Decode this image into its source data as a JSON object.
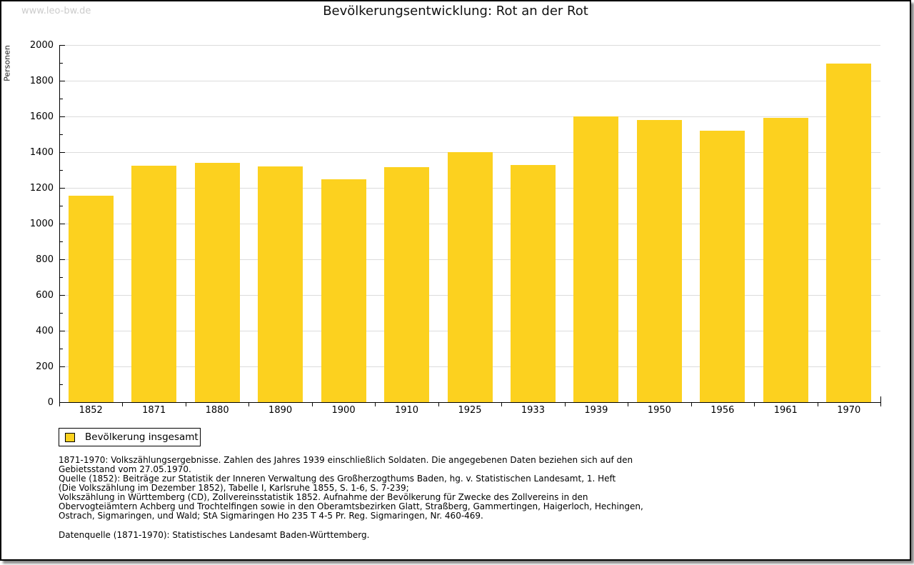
{
  "watermark": "www.leo-bw.de",
  "title": "Bevölkerungsentwicklung: Rot an der Rot",
  "chart_data": {
    "type": "bar",
    "title": "Bevölkerungsentwicklung: Rot an der Rot",
    "xlabel": "",
    "ylabel": "Personen",
    "categories": [
      "1852",
      "1871",
      "1880",
      "1890",
      "1900",
      "1910",
      "1925",
      "1933",
      "1939",
      "1950",
      "1956",
      "1961",
      "1970"
    ],
    "values": [
      1155,
      1324,
      1340,
      1322,
      1250,
      1315,
      1402,
      1330,
      1600,
      1580,
      1520,
      1591,
      1898
    ],
    "ylim": [
      0,
      2000
    ],
    "ytick_step": 200,
    "ytick_minor_step": 100,
    "grid": true,
    "legend_position": "bottom-left",
    "series_name": "Bevölkerung insgesamt",
    "bar_color": "#fcd11f"
  },
  "legend": {
    "label": "Bevölkerung insgesamt",
    "swatch_color": "#fcd11f"
  },
  "footnotes": {
    "para1_lines": [
      "1871-1970: Volkszählungsergebnisse. Zahlen des Jahres 1939 einschließlich Soldaten. Die angegebenen Daten beziehen sich auf den",
      "Gebietsstand vom 27.05.1970.",
      "Quelle (1852): Beiträge zur Statistik der Inneren Verwaltung des Großherzogthums Baden, hg. v. Statistischen Landesamt, 1. Heft",
      "(Die Volkszählung im Dezember 1852), Tabelle I, Karlsruhe 1855, S. 1-6, S. 7-239;",
      "Volkszählung in Württemberg (CD), Zollvereinsstatistik 1852. Aufnahme der Bevölkerung für Zwecke des Zollvereins in den",
      "Obervogteiämtern Achberg und Trochtelfingen sowie in den Oberamtsbezirken Glatt, Straßberg, Gammertingen, Haigerloch, Hechingen,",
      "Ostrach, Sigmaringen, und Wald; StA Sigmaringen Ho 235 T 4-5 Pr. Reg. Sigmaringen, Nr. 460-469."
    ],
    "para2": "Datenquelle (1871-1970): Statistisches Landesamt Baden-Württemberg."
  },
  "colors": {
    "bar": "#fcd11f",
    "gridline": "#dcdcdc",
    "axis": "#000000",
    "watermark": "#cccccc",
    "background": "#ffffff"
  }
}
